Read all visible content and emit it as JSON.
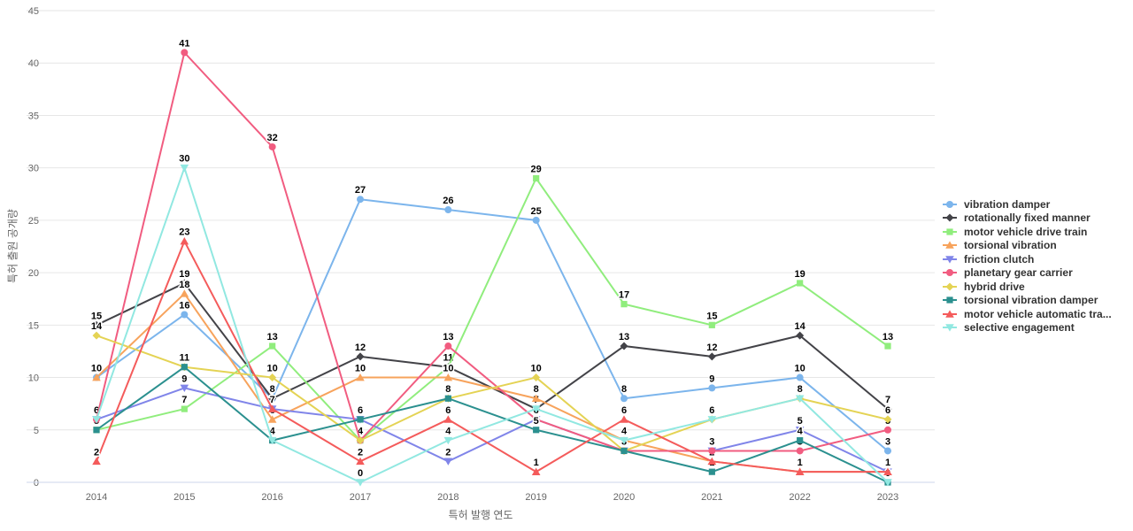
{
  "chart_data": {
    "type": "line",
    "title": "",
    "xlabel": "특허 발행 연도",
    "ylabel": "특허 출원 공개량",
    "ylim": [
      0,
      45
    ],
    "ytick_interval": 5,
    "grid": "horizontal-only",
    "legend_position": "right",
    "categories": [
      "2014",
      "2015",
      "2016",
      "2017",
      "2018",
      "2019",
      "2020",
      "2021",
      "2022",
      "2023"
    ],
    "series": [
      {
        "name": "vibration damper",
        "color": "#7cb5ec",
        "marker": "circle",
        "values": [
          10,
          16,
          8,
          27,
          26,
          25,
          8,
          9,
          10,
          3
        ]
      },
      {
        "name": "rotationally fixed manner",
        "color": "#434348",
        "marker": "diamond",
        "values": [
          15,
          19,
          8,
          12,
          11,
          7,
          13,
          12,
          14,
          7
        ]
      },
      {
        "name": "motor vehicle drive train",
        "color": "#90ed7d",
        "marker": "square",
        "values": [
          5,
          7,
          13,
          4,
          11,
          29,
          17,
          15,
          19,
          13
        ]
      },
      {
        "name": "torsional vibration",
        "color": "#f7a35c",
        "marker": "triangle",
        "values": [
          10,
          18,
          6,
          10,
          10,
          8,
          4,
          2,
          1,
          1
        ]
      },
      {
        "name": "friction clutch",
        "color": "#8085e9",
        "marker": "triangle-down",
        "values": [
          6,
          9,
          7,
          6,
          2,
          6,
          3,
          3,
          5,
          1
        ]
      },
      {
        "name": "planetary gear carrier",
        "color": "#f15c80",
        "marker": "circle",
        "values": [
          6,
          41,
          32,
          4,
          13,
          6,
          3,
          3,
          3,
          5
        ]
      },
      {
        "name": "hybrid drive",
        "color": "#e4d354",
        "marker": "diamond",
        "values": [
          14,
          11,
          10,
          4,
          8,
          10,
          3,
          6,
          8,
          6
        ]
      },
      {
        "name": "torsional vibration damper",
        "color": "#2b908f",
        "marker": "square",
        "values": [
          5,
          11,
          4,
          6,
          8,
          5,
          3,
          1,
          4,
          0
        ]
      },
      {
        "name": "motor vehicle automatic tra...",
        "color": "#f45b5b",
        "marker": "triangle",
        "values": [
          2,
          23,
          7,
          2,
          6,
          1,
          6,
          2,
          1,
          1
        ]
      },
      {
        "name": "selective engagement",
        "color": "#91e8e1",
        "marker": "triangle-down",
        "values": [
          6,
          30,
          4,
          0,
          4,
          7,
          4,
          6,
          8,
          0
        ]
      }
    ],
    "colors": {
      "grid_line": "#e6e6e6",
      "axis_line": "#ccd6eb",
      "axis_label": "#666666",
      "data_label": "#000000",
      "legend_text": "#333333",
      "background": "#ffffff"
    }
  }
}
